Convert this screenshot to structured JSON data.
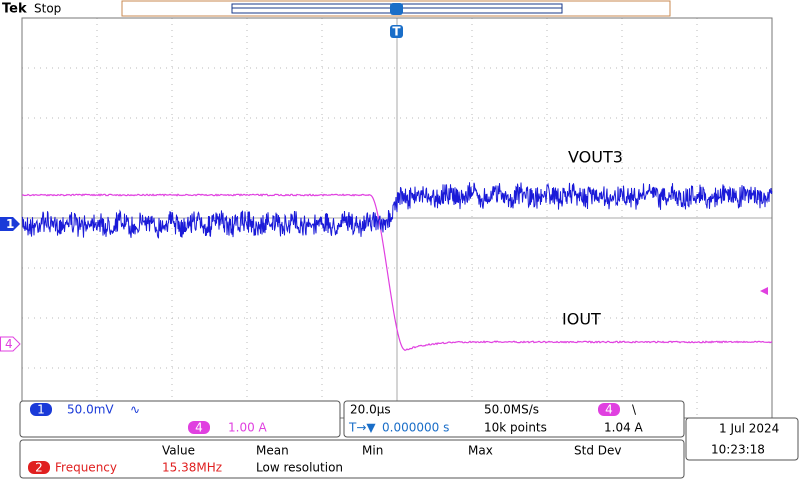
{
  "header": {
    "brand": "Tek",
    "status": "Stop",
    "trigger_marker": "T"
  },
  "traces": {
    "ch1_label": "VOUT3",
    "ch4_label": "IOUT",
    "ch1_marker": "1",
    "ch4_marker": "4"
  },
  "channel_panel": {
    "ch1_badge": "1",
    "ch1_scale": "50.0mV",
    "ch1_coupling": "∿",
    "ch4_badge": "4",
    "ch4_scale": "1.00 A"
  },
  "acquisition_panel": {
    "horizontal_scale": "20.0μs",
    "sample_rate": "50.0MS/s",
    "trigger_badge": "4",
    "trigger_slope": "\\",
    "trigger_position_icon": "T→▼",
    "trigger_position": "0.000000 s",
    "record_length": "10k points",
    "trigger_level": "1.04 A"
  },
  "datetime": {
    "date": "1 Jul  2024",
    "time": "10:23:18"
  },
  "measurements": {
    "headers": [
      "Value",
      "Mean",
      "Min",
      "Max",
      "Std Dev"
    ],
    "row": {
      "badge": "2",
      "name": "Frequency",
      "value": "15.38MHz",
      "mean": "Low resolution"
    }
  }
}
